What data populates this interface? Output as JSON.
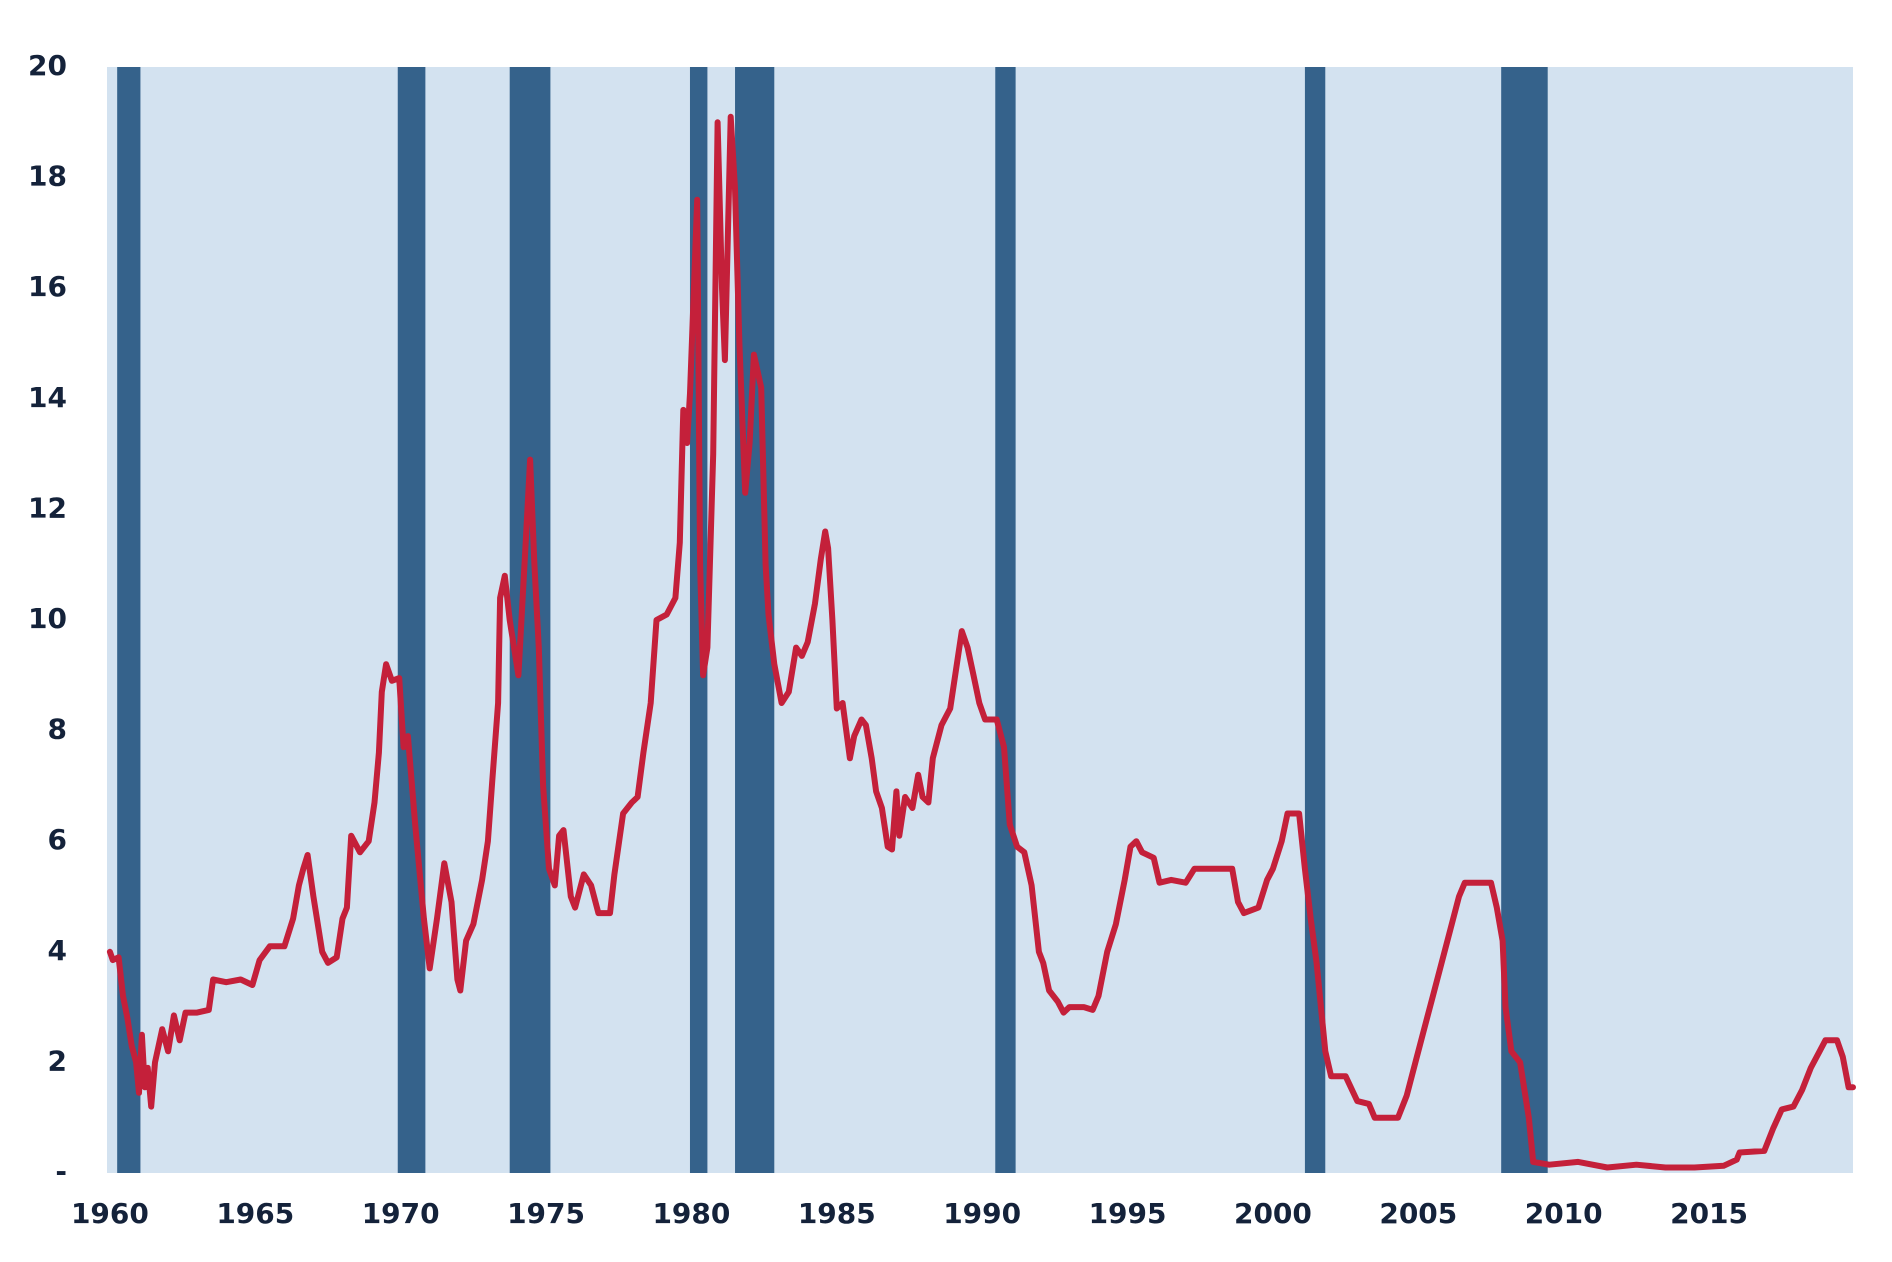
{
  "chart_data": {
    "type": "line",
    "x": [
      1960.0,
      1960.1,
      1960.3,
      1960.45,
      1960.6,
      1960.75,
      1960.9,
      1961.0,
      1961.1,
      1961.2,
      1961.3,
      1961.42,
      1961.55,
      1961.8,
      1962.0,
      1962.2,
      1962.4,
      1962.6,
      1963.0,
      1963.4,
      1963.55,
      1964.0,
      1964.5,
      1964.9,
      1965.15,
      1965.5,
      1966.0,
      1966.3,
      1966.5,
      1966.65,
      1966.8,
      1967.0,
      1967.3,
      1967.5,
      1967.8,
      1968.0,
      1968.15,
      1968.3,
      1968.6,
      1968.9,
      1969.1,
      1969.25,
      1969.35,
      1969.5,
      1969.7,
      1969.95,
      1970.1,
      1970.25,
      1970.5,
      1970.8,
      1971.0,
      1971.25,
      1971.5,
      1971.75,
      1971.95,
      1972.05,
      1972.25,
      1972.5,
      1972.8,
      1973.0,
      1973.15,
      1973.35,
      1973.42,
      1973.58,
      1973.75,
      1974.05,
      1974.3,
      1974.45,
      1974.6,
      1974.75,
      1974.9,
      1975.1,
      1975.3,
      1975.45,
      1975.6,
      1975.85,
      1976.0,
      1976.3,
      1976.55,
      1976.8,
      1977.2,
      1977.35,
      1977.65,
      1977.95,
      1978.15,
      1978.35,
      1978.6,
      1978.8,
      1979.15,
      1979.45,
      1979.6,
      1979.72,
      1979.85,
      1979.95,
      1980.2,
      1980.3,
      1980.4,
      1980.55,
      1980.75,
      1980.9,
      1981.05,
      1981.15,
      1981.35,
      1981.5,
      1981.65,
      1981.85,
      1982.0,
      1982.15,
      1982.4,
      1982.55,
      1982.65,
      1982.85,
      1983.1,
      1983.35,
      1983.6,
      1983.8,
      1984.0,
      1984.25,
      1984.45,
      1984.6,
      1984.7,
      1984.85,
      1985.0,
      1985.2,
      1985.45,
      1985.6,
      1985.85,
      1986.0,
      1986.2,
      1986.35,
      1986.55,
      1986.75,
      1986.9,
      1987.05,
      1987.15,
      1987.35,
      1987.6,
      1987.8,
      1987.95,
      1988.15,
      1988.3,
      1988.6,
      1988.9,
      1989.1,
      1989.3,
      1989.5,
      1989.7,
      1989.9,
      1990.1,
      1990.5,
      1990.75,
      1990.95,
      1991.2,
      1991.45,
      1991.7,
      1991.95,
      1992.1,
      1992.3,
      1992.6,
      1992.8,
      1993.0,
      1993.5,
      1993.8,
      1994.0,
      1994.3,
      1994.6,
      1994.9,
      1995.1,
      1995.3,
      1995.5,
      1995.9,
      1996.1,
      1996.5,
      1997.0,
      1997.3,
      1997.8,
      1998.3,
      1998.6,
      1998.8,
      1999.0,
      1999.5,
      1999.8,
      2000.0,
      2000.3,
      2000.5,
      2000.9,
      2001.1,
      2001.3,
      2001.5,
      2001.8,
      2002.0,
      2002.5,
      2002.9,
      2003.3,
      2003.5,
      2004.3,
      2004.6,
      2004.9,
      2005.2,
      2005.5,
      2005.8,
      2006.1,
      2006.4,
      2006.6,
      2007.5,
      2007.7,
      2007.9,
      2008.0,
      2008.2,
      2008.5,
      2008.8,
      2008.95,
      2009.5,
      2010.5,
      2011.5,
      2012.5,
      2013.5,
      2014.5,
      2015.5,
      2015.95,
      2016.05,
      2016.9,
      2017.2,
      2017.5,
      2017.9,
      2018.2,
      2018.5,
      2018.8,
      2019.0,
      2019.4,
      2019.6,
      2019.8,
      2019.95
    ],
    "series": [
      {
        "color": "#c4203a",
        "values": [
          4.0,
          3.85,
          3.9,
          3.2,
          2.8,
          2.3,
          2.0,
          1.45,
          2.5,
          1.55,
          1.9,
          1.2,
          2.0,
          2.6,
          2.2,
          2.85,
          2.4,
          2.9,
          2.9,
          2.95,
          3.5,
          3.45,
          3.5,
          3.4,
          3.85,
          4.1,
          4.1,
          4.6,
          5.2,
          5.5,
          5.75,
          5.0,
          4.0,
          3.8,
          3.9,
          4.6,
          4.8,
          6.1,
          5.8,
          6.0,
          6.7,
          7.6,
          8.7,
          9.2,
          8.9,
          8.95,
          7.7,
          7.9,
          6.3,
          4.6,
          3.7,
          4.6,
          5.6,
          4.9,
          3.5,
          3.3,
          4.2,
          4.5,
          5.3,
          6.0,
          7.1,
          8.5,
          10.4,
          10.8,
          10.0,
          9.0,
          11.4,
          12.9,
          11.0,
          9.5,
          7.0,
          5.5,
          5.2,
          6.1,
          6.2,
          5.0,
          4.8,
          5.4,
          5.2,
          4.7,
          4.7,
          5.4,
          6.5,
          6.7,
          6.8,
          7.6,
          8.5,
          10.0,
          10.1,
          10.4,
          11.4,
          13.8,
          13.2,
          14.1,
          17.6,
          11.0,
          9.0,
          9.5,
          13.0,
          19.0,
          16.0,
          14.7,
          19.1,
          17.8,
          15.0,
          12.3,
          13.2,
          14.8,
          14.2,
          11.0,
          10.1,
          9.2,
          8.5,
          8.7,
          9.5,
          9.35,
          9.6,
          10.3,
          11.1,
          11.6,
          11.3,
          10.0,
          8.4,
          8.5,
          7.5,
          7.9,
          8.2,
          8.1,
          7.5,
          6.9,
          6.6,
          5.9,
          5.85,
          6.9,
          6.1,
          6.8,
          6.6,
          7.2,
          6.8,
          6.7,
          7.5,
          8.1,
          8.4,
          9.1,
          9.8,
          9.5,
          9.0,
          8.5,
          8.2,
          8.2,
          7.7,
          6.3,
          5.9,
          5.8,
          5.2,
          4.0,
          3.8,
          3.3,
          3.1,
          2.9,
          3.0,
          3.0,
          2.95,
          3.2,
          4.0,
          4.5,
          5.3,
          5.9,
          6.0,
          5.8,
          5.7,
          5.25,
          5.3,
          5.25,
          5.5,
          5.5,
          5.5,
          5.5,
          4.9,
          4.7,
          4.8,
          5.3,
          5.5,
          6.0,
          6.5,
          6.5,
          5.5,
          4.6,
          3.8,
          2.2,
          1.75,
          1.75,
          1.3,
          1.25,
          1.0,
          1.0,
          1.4,
          2.0,
          2.6,
          3.2,
          3.8,
          4.4,
          5.0,
          5.25,
          5.25,
          4.8,
          4.2,
          3.0,
          2.2,
          2.0,
          1.0,
          0.2,
          0.15,
          0.2,
          0.1,
          0.15,
          0.1,
          0.1,
          0.13,
          0.24,
          0.37,
          0.4,
          0.8,
          1.15,
          1.2,
          1.5,
          1.9,
          2.2,
          2.4,
          2.4,
          2.1,
          1.55,
          1.55
        ]
      }
    ],
    "recessions": [
      [
        1960.25,
        1961.05
      ],
      [
        1969.9,
        1970.85
      ],
      [
        1973.75,
        1975.15
      ],
      [
        1979.95,
        1980.55
      ],
      [
        1981.5,
        1982.85
      ],
      [
        1990.45,
        1991.15
      ],
      [
        2001.1,
        2001.8
      ],
      [
        2007.85,
        2009.45
      ]
    ],
    "recession_color": "#35628b",
    "background": "#d3e2f0",
    "xlim": [
      1959.9,
      2019.95
    ],
    "xticks": [
      1960,
      1965,
      1970,
      1975,
      1980,
      1985,
      1990,
      1995,
      2000,
      2005,
      2010,
      2015
    ],
    "ylim": [
      0,
      20
    ],
    "yticks": [
      {
        "value": 0,
        "label": "-"
      },
      2,
      4,
      6,
      8,
      10,
      12,
      14,
      16,
      18,
      20
    ],
    "grid": false
  }
}
